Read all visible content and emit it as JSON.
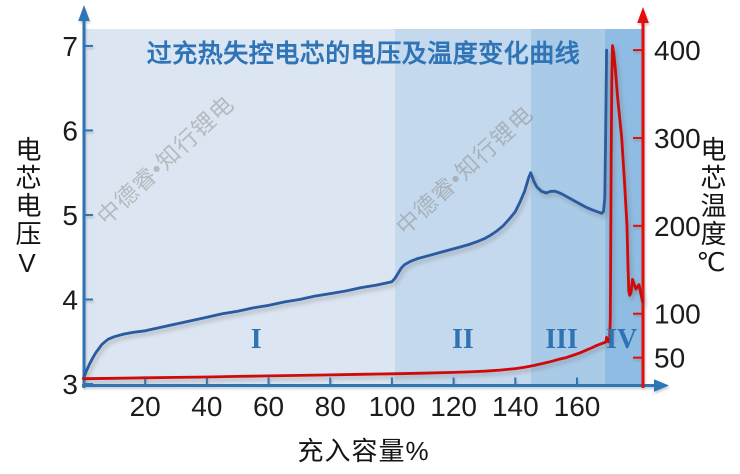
{
  "title": {
    "text": "过充热失控电芯的电压及温度变化曲线"
  },
  "watermark": {
    "text": "中德睿•知行锂电"
  },
  "axes": {
    "left_title": "电芯电压V",
    "right_title": "电芯温度℃",
    "x_title": "充入容量%"
  },
  "colors": {
    "title_blue": "#2e74b6",
    "axis_blue": "#2e75b6",
    "axis_red": "#e60d0d",
    "voltage_curve": "#2a5a9f",
    "temperature_curve": "#d00a0a",
    "zone_label_blue": "#2e74b5"
  },
  "chart_data": {
    "type": "line",
    "title": "过充热失控电芯的电压及温度变化曲线",
    "xlabel": "充入容量%",
    "ylabel_left": "电芯电压V",
    "ylabel_right": "电芯温度℃",
    "xlim": [
      0,
      181.4
    ],
    "ylim_left": [
      3,
      7.2
    ],
    "ylim_right": [
      20,
      424
    ],
    "x_ticks": [
      20,
      40,
      60,
      80,
      100,
      120,
      140,
      160
    ],
    "left_ticks": [
      3,
      4,
      5,
      6,
      7
    ],
    "right_ticks": [
      50,
      100,
      200,
      300,
      400
    ],
    "grid": false,
    "legend": "none",
    "zones": [
      {
        "label": "I",
        "from": 0,
        "to": 101,
        "color": "#dce6f3",
        "label_x": 56
      },
      {
        "label": "II",
        "from": 101,
        "to": 145,
        "color": "#c5d9ee",
        "label_x": 123
      },
      {
        "label": "III",
        "from": 145,
        "to": 169,
        "color": "#a9cbe8",
        "label_x": 155
      },
      {
        "label": "IV",
        "from": 169,
        "to": 181.4,
        "color": "#8fbce2",
        "label_x": 174.5
      }
    ],
    "series": [
      {
        "name": "cell-voltage-V",
        "axis": "left",
        "color": "#2a5a9f",
        "points": [
          [
            0,
            3.07
          ],
          [
            1,
            3.16
          ],
          [
            2,
            3.24
          ],
          [
            3,
            3.31
          ],
          [
            4,
            3.37
          ],
          [
            5,
            3.42
          ],
          [
            6,
            3.47
          ],
          [
            7,
            3.5
          ],
          [
            8,
            3.53
          ],
          [
            10,
            3.56
          ],
          [
            13,
            3.59
          ],
          [
            16,
            3.61
          ],
          [
            20,
            3.63
          ],
          [
            25,
            3.67
          ],
          [
            30,
            3.71
          ],
          [
            35,
            3.75
          ],
          [
            40,
            3.79
          ],
          [
            45,
            3.83
          ],
          [
            50,
            3.86
          ],
          [
            55,
            3.9
          ],
          [
            60,
            3.93
          ],
          [
            65,
            3.97
          ],
          [
            70,
            4.0
          ],
          [
            75,
            4.04
          ],
          [
            80,
            4.07
          ],
          [
            85,
            4.1
          ],
          [
            90,
            4.14
          ],
          [
            95,
            4.17
          ],
          [
            100,
            4.21
          ],
          [
            101,
            4.25
          ],
          [
            102,
            4.31
          ],
          [
            103,
            4.37
          ],
          [
            104,
            4.41
          ],
          [
            106,
            4.45
          ],
          [
            108,
            4.48
          ],
          [
            110,
            4.5
          ],
          [
            113,
            4.53
          ],
          [
            116,
            4.56
          ],
          [
            119,
            4.59
          ],
          [
            122,
            4.62
          ],
          [
            125,
            4.65
          ],
          [
            128,
            4.69
          ],
          [
            130,
            4.72
          ],
          [
            132,
            4.76
          ],
          [
            134,
            4.81
          ],
          [
            136,
            4.87
          ],
          [
            138,
            4.95
          ],
          [
            140,
            5.04
          ],
          [
            141.5,
            5.15
          ],
          [
            143,
            5.28
          ],
          [
            144.3,
            5.44
          ],
          [
            145,
            5.5
          ],
          [
            146,
            5.4
          ],
          [
            147,
            5.33
          ],
          [
            148.5,
            5.28
          ],
          [
            150,
            5.26
          ],
          [
            151.5,
            5.28
          ],
          [
            153,
            5.28
          ],
          [
            155,
            5.25
          ],
          [
            157,
            5.21
          ],
          [
            159,
            5.17
          ],
          [
            161,
            5.13
          ],
          [
            163,
            5.09
          ],
          [
            165,
            5.06
          ],
          [
            166.5,
            5.04
          ],
          [
            168,
            5.02
          ],
          [
            168.6,
            5.04
          ],
          [
            169,
            5.2
          ],
          [
            169.3,
            6.0
          ],
          [
            169.6,
            6.95
          ]
        ]
      },
      {
        "name": "cell-temperature-C",
        "axis": "right",
        "color": "#d00a0a",
        "points": [
          [
            0,
            26
          ],
          [
            10,
            26.5
          ],
          [
            20,
            27
          ],
          [
            30,
            27.5
          ],
          [
            40,
            28
          ],
          [
            50,
            28.6
          ],
          [
            60,
            29.2
          ],
          [
            70,
            29.8
          ],
          [
            80,
            30.4
          ],
          [
            90,
            31
          ],
          [
            100,
            31.6
          ],
          [
            110,
            32.3
          ],
          [
            120,
            33.2
          ],
          [
            125,
            33.8
          ],
          [
            130,
            34.6
          ],
          [
            135,
            35.8
          ],
          [
            140,
            37.5
          ],
          [
            143,
            39
          ],
          [
            146,
            41
          ],
          [
            149,
            43.5
          ],
          [
            152,
            46
          ],
          [
            154,
            48
          ],
          [
            156.5,
            50
          ],
          [
            159,
            53
          ],
          [
            161,
            55.5
          ],
          [
            163,
            58.5
          ],
          [
            165,
            61.5
          ],
          [
            166.5,
            64
          ],
          [
            168,
            66
          ],
          [
            168.8,
            67
          ],
          [
            169.4,
            68
          ],
          [
            169.6,
            73
          ],
          [
            170,
            69
          ],
          [
            170.3,
            68
          ],
          [
            170.6,
            72
          ],
          [
            170.8,
            95
          ],
          [
            170.9,
            150
          ],
          [
            171.1,
            280
          ],
          [
            171.3,
            365
          ],
          [
            171.5,
            405
          ],
          [
            171.9,
            397
          ],
          [
            172.4,
            380
          ],
          [
            173.2,
            345
          ],
          [
            174.5,
            300
          ],
          [
            175.4,
            250
          ],
          [
            176.2,
            200
          ],
          [
            176.5,
            158
          ],
          [
            176.8,
            126
          ],
          [
            177.1,
            121
          ],
          [
            177.5,
            124
          ],
          [
            178,
            139
          ],
          [
            179.1,
            128
          ],
          [
            180.1,
            133
          ],
          [
            181.3,
            113
          ]
        ]
      }
    ]
  }
}
